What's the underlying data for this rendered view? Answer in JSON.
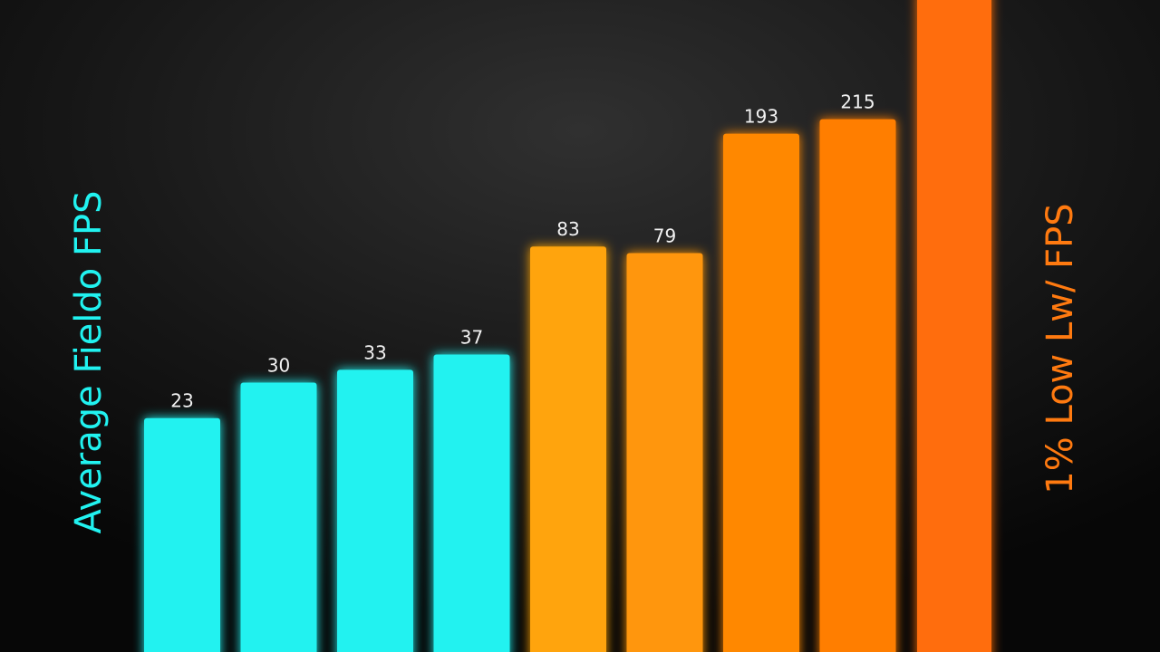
{
  "chart_data": {
    "type": "bar",
    "series": [
      {
        "name": "Average Fieldo FPS",
        "color": "#21f2f0",
        "colors": [
          "#21f2f0",
          "#21f2f0",
          "#21f2f0",
          "#21f2f0"
        ],
        "values": [
          23,
          30,
          33,
          37
        ]
      },
      {
        "name": "1% Low Lw/ FPS",
        "color": "#ff7a10",
        "colors": [
          "#ffa40c",
          "#ff9608",
          "#ff8804",
          "#ff7e02"
        ],
        "values": [
          83,
          79,
          193,
          215
        ]
      }
    ],
    "log_scale": true,
    "ylim": [
      4,
      400
    ]
  }
}
